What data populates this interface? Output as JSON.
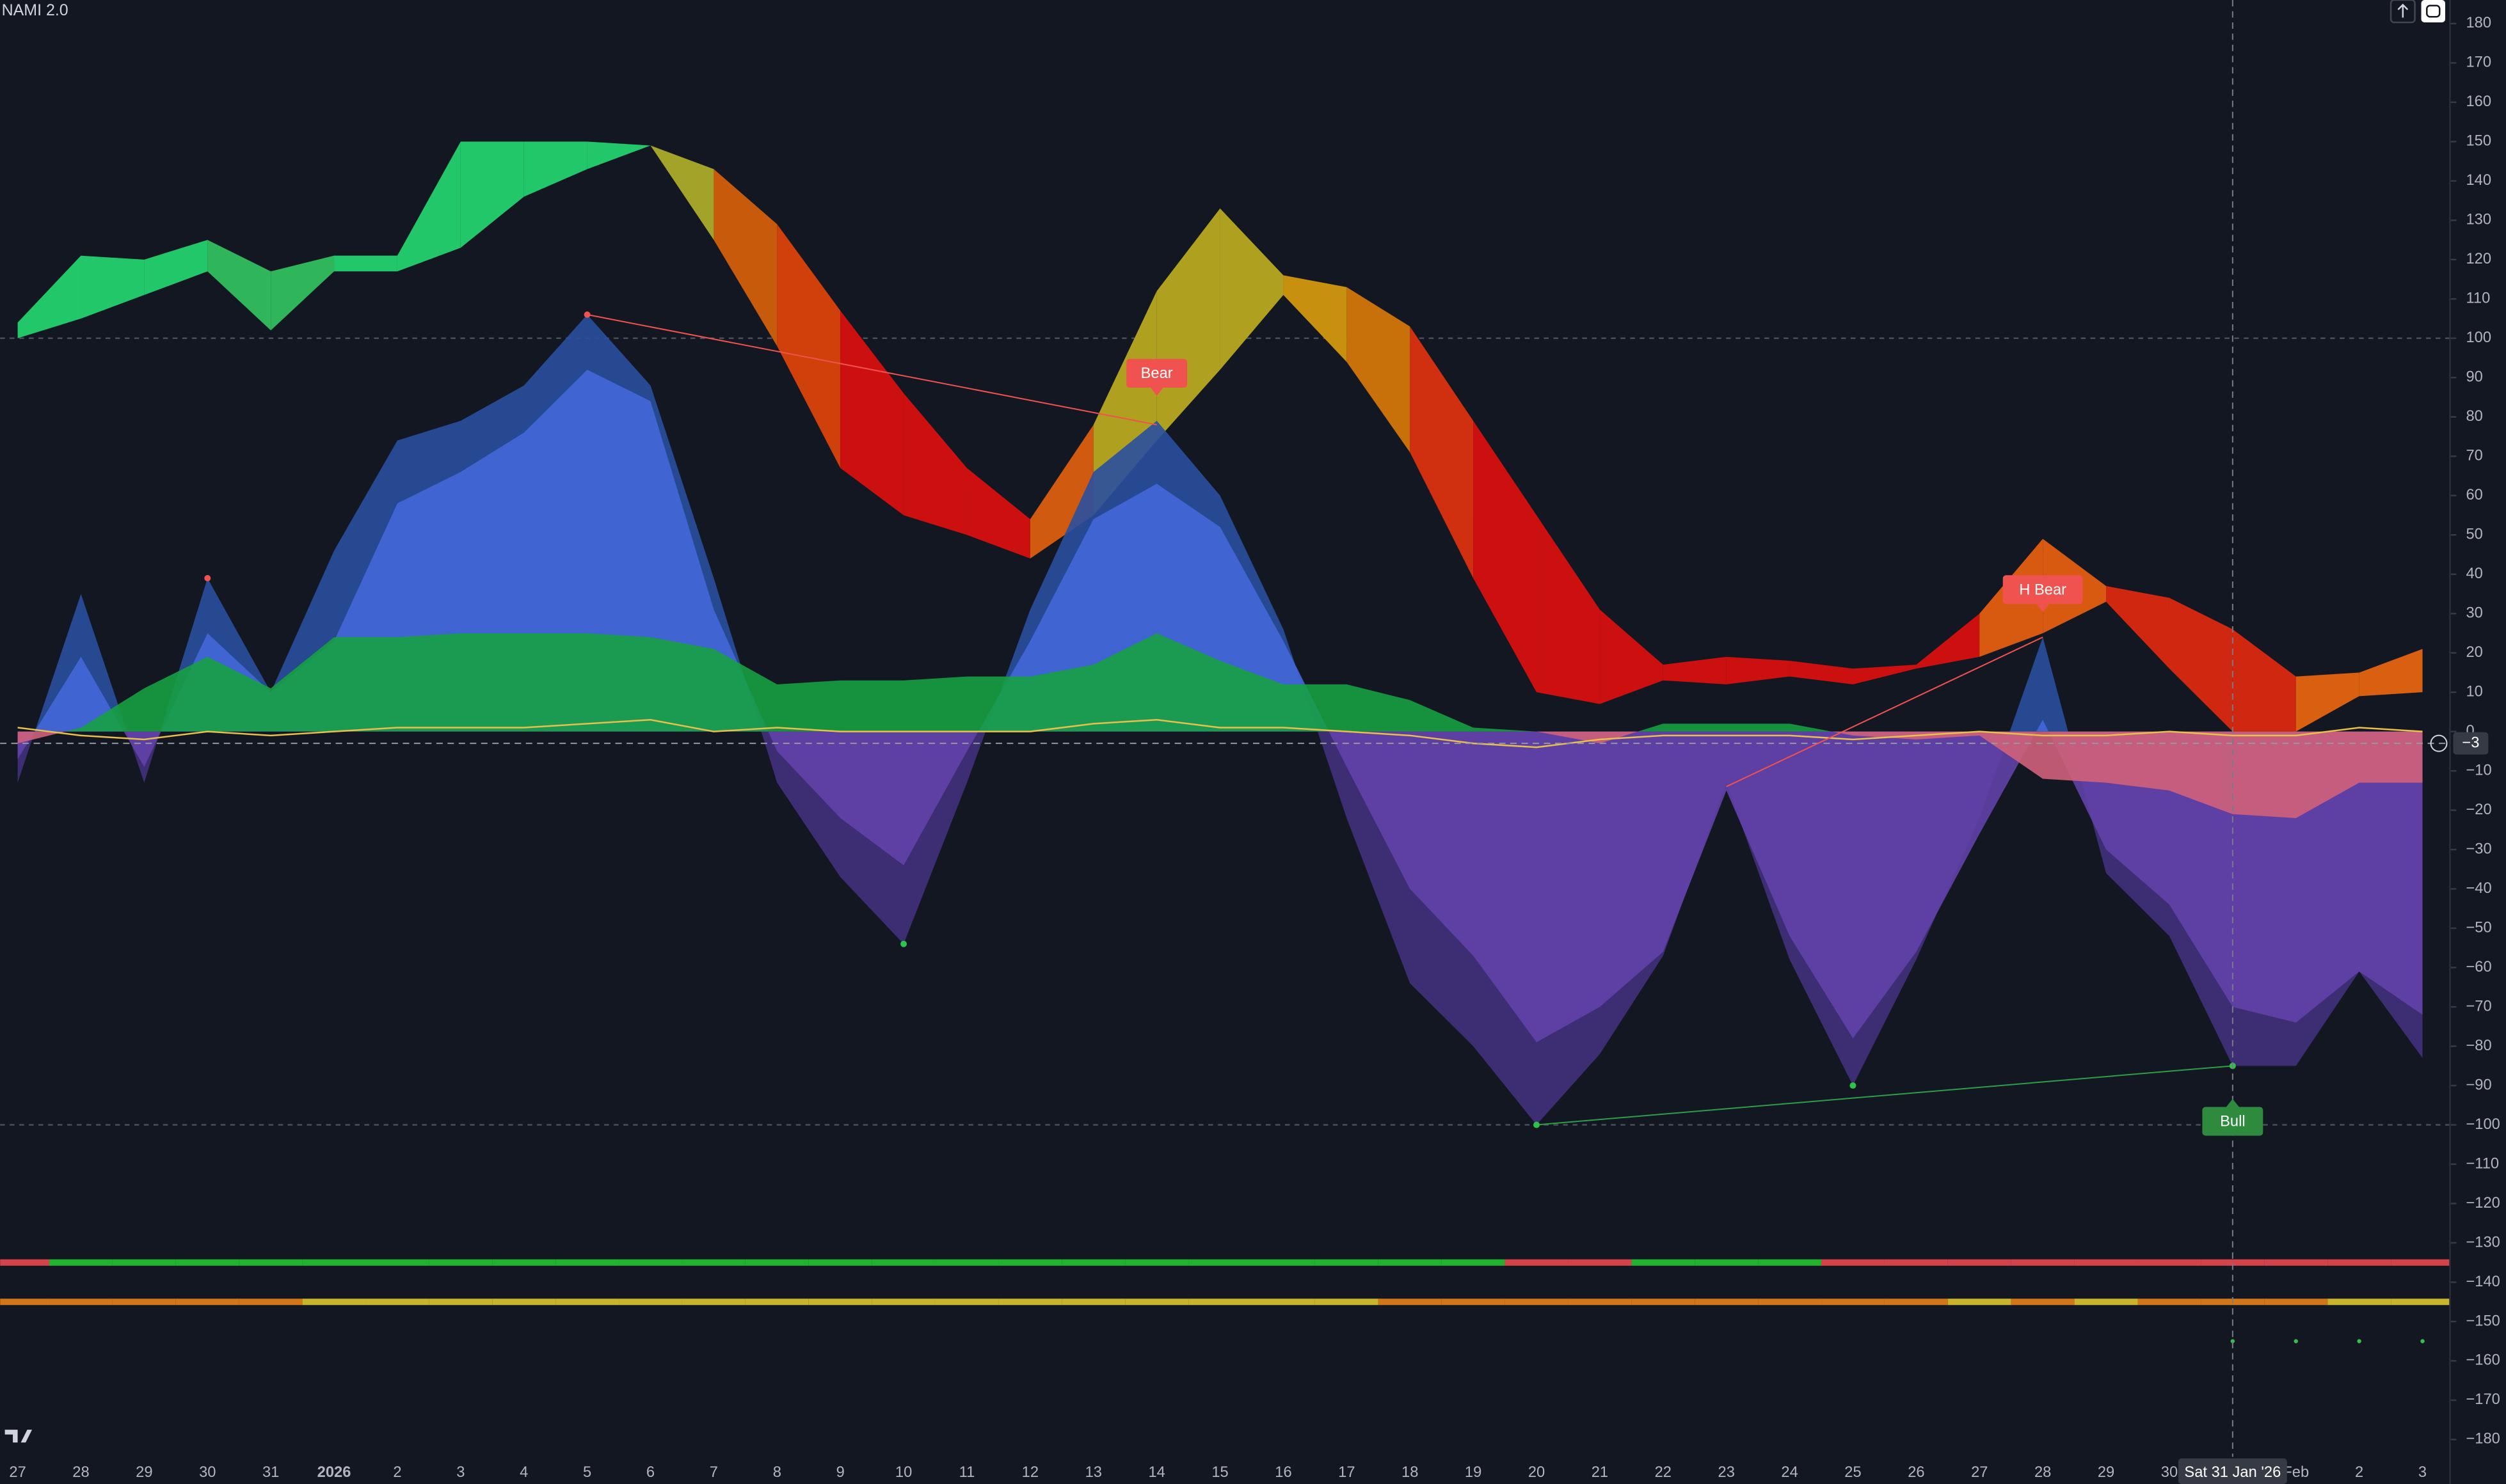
{
  "chart_data": {
    "type": "oscillator",
    "title": "NAMI 2.0",
    "categories": [
      "27",
      "28",
      "29",
      "30",
      "31",
      "2026",
      "2",
      "3",
      "4",
      "5",
      "6",
      "7",
      "8",
      "9",
      "10",
      "11",
      "12",
      "13",
      "14",
      "15",
      "16",
      "17",
      "18",
      "19",
      "20",
      "21",
      "22",
      "23",
      "24",
      "25",
      "26",
      "27",
      "28",
      "29",
      "30",
      null,
      "Feb",
      "2",
      "3"
    ],
    "ylim": [
      -184,
      186
    ],
    "yticks": [
      180,
      170,
      160,
      150,
      140,
      130,
      120,
      110,
      100,
      90,
      80,
      70,
      60,
      50,
      40,
      30,
      20,
      10,
      0,
      {
        "value": -10,
        "label": "−10"
      },
      {
        "value": -20,
        "label": "−20"
      },
      {
        "value": -30,
        "label": "−30"
      },
      {
        "value": -40,
        "label": "−40"
      },
      {
        "value": -50,
        "label": "−50"
      },
      {
        "value": -60,
        "label": "−60"
      },
      {
        "value": -70,
        "label": "−70"
      },
      {
        "value": -80,
        "label": "−80"
      },
      {
        "value": -90,
        "label": "−90"
      },
      {
        "value": -100,
        "label": "−100"
      },
      {
        "value": -110,
        "label": "−110"
      },
      {
        "value": -120,
        "label": "−120"
      },
      {
        "value": -130,
        "label": "−130"
      },
      {
        "value": -140,
        "label": "−140"
      },
      {
        "value": -150,
        "label": "−150"
      },
      {
        "value": -160,
        "label": "−160"
      },
      {
        "value": -170,
        "label": "−170"
      },
      {
        "value": -180,
        "label": "−180"
      }
    ],
    "series": [
      {
        "kind": "band",
        "values": [
          104,
          121,
          120,
          125,
          117,
          121,
          121,
          150,
          150,
          150,
          149,
          143,
          129,
          107,
          86,
          67,
          54,
          78,
          112,
          133,
          116,
          113,
          103,
          79,
          55,
          31,
          17,
          19,
          18,
          16,
          17,
          30,
          49,
          37,
          34,
          26,
          14,
          15,
          21
        ],
        "lower": [
          100,
          105,
          111,
          117,
          102,
          117,
          117,
          123,
          136,
          143,
          149,
          125,
          98,
          67,
          55,
          50,
          44,
          55,
          74,
          92,
          111,
          94,
          71,
          39,
          10,
          7,
          13,
          12,
          14,
          12,
          16,
          19,
          25,
          33,
          16,
          0,
          0,
          9,
          10
        ],
        "colors": [
          "#22c76a",
          "#22c76a",
          "#22c76a",
          "#2fb65a",
          "#2fb65a",
          "#22c76a",
          "#22c76a",
          "#22c76a",
          "#22c76a",
          "#22c76a",
          "#a3a32a",
          "#c85a0c",
          "#d0400a",
          "#cc1010",
          "#cc1010",
          "#cc1010",
          "#d05a10",
          "#b0a020",
          "#b0a020",
          "#b0a020",
          "#c8900f",
          "#c8700a",
          "#d03010",
          "#cc1010",
          "#cc1010",
          "#cc1010",
          "#cc1010",
          "#cc1010",
          "#cc1010",
          "#cc1010",
          "#cc1010",
          "#d85a10",
          "#d85a10",
          "#d02810",
          "#d02810",
          "#d02810",
          "#d86010",
          "#d86010",
          "#d86010"
        ]
      },
      {
        "kind": "area",
        "color": "#2a4f9e",
        "negative_color": "#43307c",
        "values": [
          -13,
          35,
          -13,
          39,
          10,
          46,
          74,
          79,
          88,
          106,
          88,
          39,
          -13,
          -37,
          -54,
          -13,
          31,
          66,
          79,
          60,
          26,
          -22,
          -64,
          -80,
          -100,
          -82,
          -57,
          -13,
          -58,
          -90,
          -58,
          -22,
          24,
          -36,
          -52,
          -85,
          -85,
          -61,
          -83
        ]
      },
      {
        "kind": "area",
        "color": "#4467d8",
        "negative_color": "#6241a8",
        "values": [
          -7,
          19,
          -9,
          25,
          10,
          23,
          58,
          66,
          76,
          92,
          84,
          31,
          -5,
          -22,
          -34,
          -5,
          23,
          54,
          63,
          52,
          23,
          -9,
          -40,
          -57,
          -79,
          -70,
          -56,
          -15,
          -52,
          -78,
          -56,
          -26,
          3,
          -30,
          -44,
          -70,
          -74,
          -61,
          -72
        ]
      },
      {
        "kind": "area",
        "color": "#17a043",
        "negative_color": "#d0607a",
        "values": [
          -3,
          1,
          11,
          19,
          11,
          24,
          24,
          25,
          25,
          25,
          24,
          21,
          12,
          13,
          13,
          14,
          14,
          17,
          25,
          18,
          12,
          12,
          8,
          1,
          0,
          -3,
          2,
          2,
          2,
          -1,
          -2,
          -1,
          -12,
          -13,
          -15,
          -21,
          -22,
          -13,
          -13
        ]
      },
      {
        "kind": "line",
        "color": "#e8c04a",
        "values": [
          1,
          -1,
          -2,
          0,
          -1,
          0,
          1,
          1,
          1,
          2,
          3,
          0,
          1,
          0,
          0,
          0,
          0,
          2,
          3,
          1,
          1,
          0,
          -1,
          -3,
          -4,
          -2,
          -1,
          -1,
          -1,
          -2,
          -1,
          0,
          -1,
          -1,
          0,
          -1,
          -1,
          1,
          0
        ]
      }
    ],
    "levels": [
      100,
      -100
    ],
    "marker": {
      "value": -3,
      "label": "−3"
    },
    "divergences": [
      {
        "x": [
          9,
          18
        ],
        "y": [
          106,
          78
        ],
        "color": "#f0524f"
      },
      {
        "x": [
          27,
          32
        ],
        "y": [
          -14,
          24
        ],
        "color": "#f0524f"
      },
      {
        "x": [
          24,
          35
        ],
        "y": [
          -100,
          -85
        ],
        "color": "#2e9e48"
      }
    ],
    "pivots": {
      "x": [
        3,
        9,
        14,
        24,
        29,
        35
      ],
      "y": [
        39,
        106,
        -54,
        -100,
        -90,
        -85
      ],
      "colors": [
        "#f0524f",
        "#f0524f",
        "#2ec24a",
        "#2ec24a",
        "#2ec24a",
        "#2ec24a"
      ]
    },
    "labels": [
      {
        "text": "Bear",
        "x": 18,
        "y": 85,
        "color": "#f0524f"
      },
      {
        "text": "H Bear",
        "x": 32,
        "y": 30,
        "color": "#f0524f"
      },
      {
        "text": "Bull",
        "x": 35,
        "y": -93,
        "color": "#2e8b3e"
      }
    ],
    "bars": [
      {
        "value": -135,
        "colors": [
          "#d4424a",
          "#22b32e",
          "#22b32e",
          "#22b32e",
          "#22b32e",
          "#22b32e",
          "#22b32e",
          "#22b32e",
          "#22b32e",
          "#22b32e",
          "#22b32e",
          "#22b32e",
          "#22b32e",
          "#22b32e",
          "#22b32e",
          "#22b32e",
          "#22b32e",
          "#22b32e",
          "#22b32e",
          "#22b32e",
          "#22b32e",
          "#22b32e",
          "#22b32e",
          "#22b32e",
          "#d4424a",
          "#d4424a",
          "#22b32e",
          "#22b32e",
          "#22b32e",
          "#d4424a",
          "#d4424a",
          "#d4424a",
          "#d4424a",
          "#d4424a",
          "#d4424a",
          "#d4424a",
          "#d4424a",
          "#d4424a",
          "#d4424a"
        ]
      },
      {
        "value": -145,
        "colors": [
          "#d2761a",
          "#d2761a",
          "#d2761a",
          "#d2761a",
          "#d2761a",
          "#c9b42e",
          "#c9b42e",
          "#c9b42e",
          "#c9b42e",
          "#c9b42e",
          "#c9b42e",
          "#c9b42e",
          "#c9b42e",
          "#c9b42e",
          "#c9b42e",
          "#c9b42e",
          "#c9b42e",
          "#c9b42e",
          "#c9b42e",
          "#c9b42e",
          "#c9b42e",
          "#c9b42e",
          "#d2761a",
          "#d2761a",
          "#d2761a",
          "#d2761a",
          "#d2761a",
          "#d2761a",
          "#d2761a",
          "#d2761a",
          "#d2761a",
          "#c9b42e",
          "#d2761a",
          "#c9b42e",
          "#d2761a",
          "#d2761a",
          "#d2761a",
          "#c9b42e",
          "#c9b42e"
        ]
      }
    ],
    "dots": {
      "y": -155,
      "x": [
        35,
        36,
        37,
        38
      ],
      "color": "#2ec24a"
    },
    "crosshair": {
      "x": 35,
      "label": "Sat 31 Jan '26"
    }
  }
}
